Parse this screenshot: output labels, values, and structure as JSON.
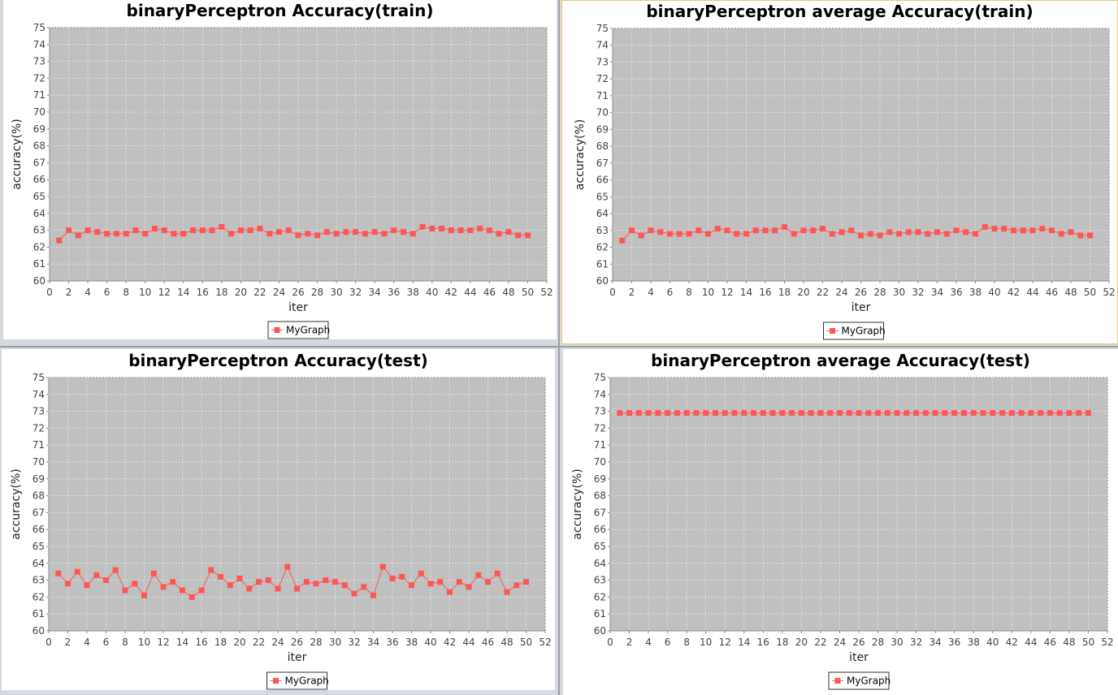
{
  "colors": {
    "plot_background": "#c0c0c0",
    "gridline": "#e8e8e8",
    "series": "#ff5555",
    "panel_background": "#ffffff"
  },
  "chart_data": [
    {
      "type": "line",
      "title": "binaryPerceptron Accuracy(train)",
      "xlabel": "iter",
      "ylabel": "accuracy(%)",
      "xlim": [
        0,
        52
      ],
      "ylim": [
        60,
        75
      ],
      "xticks": [
        0,
        2,
        4,
        6,
        8,
        10,
        12,
        14,
        16,
        18,
        20,
        22,
        24,
        26,
        28,
        30,
        32,
        34,
        36,
        38,
        40,
        42,
        44,
        46,
        48,
        50,
        52
      ],
      "yticks": [
        60,
        61,
        62,
        63,
        64,
        65,
        66,
        67,
        68,
        69,
        70,
        71,
        72,
        73,
        74,
        75
      ],
      "grid": true,
      "legend": "bottom-center",
      "series": [
        {
          "name": "MyGraph",
          "marker": "square",
          "x": [
            1,
            2,
            3,
            4,
            5,
            6,
            7,
            8,
            9,
            10,
            11,
            12,
            13,
            14,
            15,
            16,
            17,
            18,
            19,
            20,
            21,
            22,
            23,
            24,
            25,
            26,
            27,
            28,
            29,
            30,
            31,
            32,
            33,
            34,
            35,
            36,
            37,
            38,
            39,
            40,
            41,
            42,
            43,
            44,
            45,
            46,
            47,
            48,
            49,
            50
          ],
          "y": [
            62.4,
            63.0,
            62.7,
            63.0,
            62.9,
            62.8,
            62.8,
            62.8,
            63.0,
            62.8,
            63.1,
            63.0,
            62.8,
            62.8,
            63.0,
            63.0,
            63.0,
            63.2,
            62.8,
            63.0,
            63.0,
            63.1,
            62.8,
            62.9,
            63.0,
            62.7,
            62.8,
            62.7,
            62.9,
            62.8,
            62.9,
            62.9,
            62.8,
            62.9,
            62.8,
            63.0,
            62.9,
            62.8,
            63.2,
            63.1,
            63.1,
            63.0,
            63.0,
            63.0,
            63.1,
            63.0,
            62.8,
            62.9,
            62.7,
            62.7
          ]
        }
      ]
    },
    {
      "type": "line",
      "title": "binaryPerceptron average Accuracy(train)",
      "xlabel": "iter",
      "ylabel": "accuracy(%)",
      "xlim": [
        0,
        52
      ],
      "ylim": [
        60,
        75
      ],
      "xticks": [
        0,
        2,
        4,
        6,
        8,
        10,
        12,
        14,
        16,
        18,
        20,
        22,
        24,
        26,
        28,
        30,
        32,
        34,
        36,
        38,
        40,
        42,
        44,
        46,
        48,
        50,
        52
      ],
      "yticks": [
        60,
        61,
        62,
        63,
        64,
        65,
        66,
        67,
        68,
        69,
        70,
        71,
        72,
        73,
        74,
        75
      ],
      "grid": true,
      "legend": "bottom-center",
      "series": [
        {
          "name": "MyGraph",
          "marker": "square",
          "x": [
            1,
            2,
            3,
            4,
            5,
            6,
            7,
            8,
            9,
            10,
            11,
            12,
            13,
            14,
            15,
            16,
            17,
            18,
            19,
            20,
            21,
            22,
            23,
            24,
            25,
            26,
            27,
            28,
            29,
            30,
            31,
            32,
            33,
            34,
            35,
            36,
            37,
            38,
            39,
            40,
            41,
            42,
            43,
            44,
            45,
            46,
            47,
            48,
            49,
            50
          ],
          "y": [
            62.4,
            63.0,
            62.7,
            63.0,
            62.9,
            62.8,
            62.8,
            62.8,
            63.0,
            62.8,
            63.1,
            63.0,
            62.8,
            62.8,
            63.0,
            63.0,
            63.0,
            63.2,
            62.8,
            63.0,
            63.0,
            63.1,
            62.8,
            62.9,
            63.0,
            62.7,
            62.8,
            62.7,
            62.9,
            62.8,
            62.9,
            62.9,
            62.8,
            62.9,
            62.8,
            63.0,
            62.9,
            62.8,
            63.2,
            63.1,
            63.1,
            63.0,
            63.0,
            63.0,
            63.1,
            63.0,
            62.8,
            62.9,
            62.7,
            62.7
          ]
        }
      ]
    },
    {
      "type": "line",
      "title": "binaryPerceptron Accuracy(test)",
      "xlabel": "iter",
      "ylabel": "accuracy(%)",
      "xlim": [
        0,
        52
      ],
      "ylim": [
        60,
        75
      ],
      "xticks": [
        0,
        2,
        4,
        6,
        8,
        10,
        12,
        14,
        16,
        18,
        20,
        22,
        24,
        26,
        28,
        30,
        32,
        34,
        36,
        38,
        40,
        42,
        44,
        46,
        48,
        50,
        52
      ],
      "yticks": [
        60,
        61,
        62,
        63,
        64,
        65,
        66,
        67,
        68,
        69,
        70,
        71,
        72,
        73,
        74,
        75
      ],
      "grid": true,
      "legend": "bottom-center",
      "series": [
        {
          "name": "MyGraph",
          "marker": "square",
          "x": [
            1,
            2,
            3,
            4,
            5,
            6,
            7,
            8,
            9,
            10,
            11,
            12,
            13,
            14,
            15,
            16,
            17,
            18,
            19,
            20,
            21,
            22,
            23,
            24,
            25,
            26,
            27,
            28,
            29,
            30,
            31,
            32,
            33,
            34,
            35,
            36,
            37,
            38,
            39,
            40,
            41,
            42,
            43,
            44,
            45,
            46,
            47,
            48,
            49,
            50
          ],
          "y": [
            63.4,
            62.8,
            63.5,
            62.7,
            63.3,
            63.0,
            63.6,
            62.4,
            62.8,
            62.1,
            63.4,
            62.6,
            62.9,
            62.4,
            62.0,
            62.4,
            63.6,
            63.2,
            62.7,
            63.1,
            62.5,
            62.9,
            63.0,
            62.5,
            63.8,
            62.5,
            62.9,
            62.8,
            63.0,
            62.9,
            62.7,
            62.2,
            62.6,
            62.1,
            63.8,
            63.1,
            63.2,
            62.7,
            63.4,
            62.8,
            62.9,
            62.3,
            62.9,
            62.6,
            63.3,
            62.9,
            63.4,
            62.3,
            62.7,
            62.9
          ]
        }
      ]
    },
    {
      "type": "line",
      "title": "binaryPerceptron average Accuracy(test)",
      "xlabel": "iter",
      "ylabel": "accuracy(%)",
      "xlim": [
        0,
        52
      ],
      "ylim": [
        60,
        75
      ],
      "xticks": [
        0,
        2,
        4,
        6,
        8,
        10,
        12,
        14,
        16,
        18,
        20,
        22,
        24,
        26,
        28,
        30,
        32,
        34,
        36,
        38,
        40,
        42,
        44,
        46,
        48,
        50,
        52
      ],
      "yticks": [
        60,
        61,
        62,
        63,
        64,
        65,
        66,
        67,
        68,
        69,
        70,
        71,
        72,
        73,
        74,
        75
      ],
      "grid": true,
      "legend": "bottom-center",
      "series": [
        {
          "name": "MyGraph",
          "marker": "square",
          "x": [
            1,
            2,
            3,
            4,
            5,
            6,
            7,
            8,
            9,
            10,
            11,
            12,
            13,
            14,
            15,
            16,
            17,
            18,
            19,
            20,
            21,
            22,
            23,
            24,
            25,
            26,
            27,
            28,
            29,
            30,
            31,
            32,
            33,
            34,
            35,
            36,
            37,
            38,
            39,
            40,
            41,
            42,
            43,
            44,
            45,
            46,
            47,
            48,
            49,
            50
          ],
          "y": [
            72.9,
            72.9,
            72.9,
            72.9,
            72.9,
            72.9,
            72.9,
            72.9,
            72.9,
            72.9,
            72.9,
            72.9,
            72.9,
            72.9,
            72.9,
            72.9,
            72.9,
            72.9,
            72.9,
            72.9,
            72.9,
            72.9,
            72.9,
            72.9,
            72.9,
            72.9,
            72.9,
            72.9,
            72.9,
            72.9,
            72.9,
            72.9,
            72.9,
            72.9,
            72.9,
            72.9,
            72.9,
            72.9,
            72.9,
            72.9,
            72.9,
            72.9,
            72.9,
            72.9,
            72.9,
            72.9,
            72.9,
            72.9,
            72.9,
            72.9
          ]
        }
      ]
    }
  ]
}
